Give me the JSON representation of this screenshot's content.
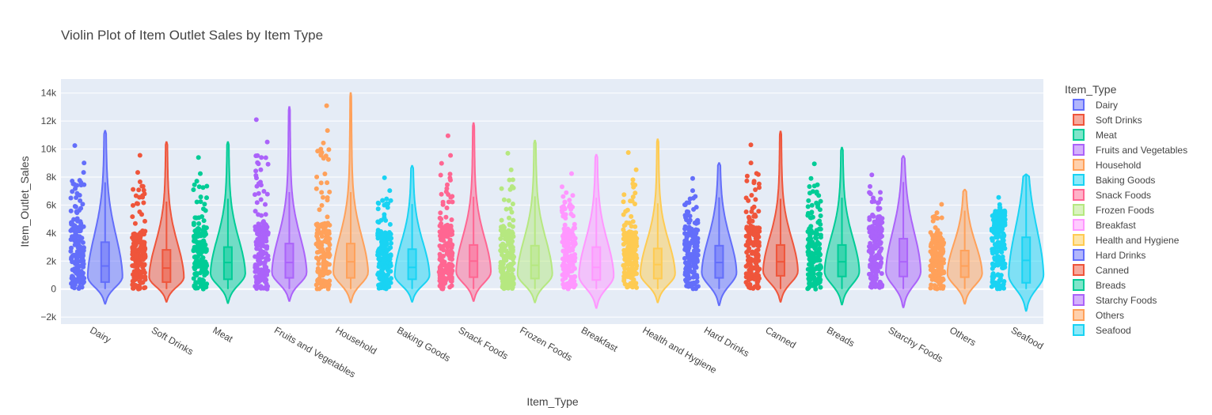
{
  "chart_data": {
    "type": "violin",
    "title": "Violin Plot of Item Outlet Sales by Item Type",
    "xlabel": "Item_Type",
    "ylabel": "Item_Outlet_Sales",
    "ylim": [
      -2500,
      15000
    ],
    "yticks": [
      -2000,
      0,
      2000,
      4000,
      6000,
      8000,
      10000,
      12000,
      14000
    ],
    "ytick_labels": [
      "−2k",
      "0",
      "2k",
      "4k",
      "6k",
      "8k",
      "10k",
      "12k",
      "14k"
    ],
    "legend_title": "Item_Type",
    "legend_position": "right",
    "grid": true,
    "categories": [
      "Dairy",
      "Soft Drinks",
      "Meat",
      "Fruits and Vegetables",
      "Household",
      "Baking Goods",
      "Snack Foods",
      "Frozen Foods",
      "Breakfast",
      "Health and Hygiene",
      "Hard Drinks",
      "Canned",
      "Breads",
      "Starchy Foods",
      "Others",
      "Seafood"
    ],
    "series": [
      {
        "name": "Dairy",
        "color": "#636efa",
        "min": 0,
        "q1": 500,
        "median": 1650,
        "q3": 3350,
        "max": 11300,
        "kde_min": -1050,
        "points_max": 10250
      },
      {
        "name": "Soft Drinks",
        "color": "#ef553b",
        "min": 0,
        "q1": 500,
        "median": 1500,
        "q3": 2800,
        "max": 10500,
        "kde_min": -900,
        "points_max": 9550
      },
      {
        "name": "Meat",
        "color": "#00cc96",
        "min": 0,
        "q1": 700,
        "median": 1900,
        "q3": 3000,
        "max": 10500,
        "kde_min": -1000,
        "points_max": 9400
      },
      {
        "name": "Fruits and Vegetables",
        "color": "#ab63fa",
        "min": 0,
        "q1": 800,
        "median": 1900,
        "q3": 3250,
        "max": 13000,
        "kde_min": -850,
        "points_max": 12100
      },
      {
        "name": "Household",
        "color": "#ffa15a",
        "min": 0,
        "q1": 800,
        "median": 1950,
        "q3": 3250,
        "max": 14000,
        "kde_min": -950,
        "points_max": 13100
      },
      {
        "name": "Baking Goods",
        "color": "#19d3f3",
        "min": 0,
        "q1": 700,
        "median": 1550,
        "q3": 2850,
        "max": 8800,
        "kde_min": -900,
        "points_max": 7950
      },
      {
        "name": "Snack Foods",
        "color": "#ff6692",
        "min": 0,
        "q1": 850,
        "median": 2000,
        "q3": 3150,
        "max": 11850,
        "kde_min": -850,
        "points_max": 10950
      },
      {
        "name": "Frozen Foods",
        "color": "#b6e880",
        "min": 0,
        "q1": 750,
        "median": 1700,
        "q3": 3100,
        "max": 10600,
        "kde_min": -950,
        "points_max": 9700
      },
      {
        "name": "Breakfast",
        "color": "#ff97ff",
        "min": 0,
        "q1": 650,
        "median": 1550,
        "q3": 3000,
        "max": 9600,
        "kde_min": -1350,
        "points_max": 8250
      },
      {
        "name": "Health and Hygiene",
        "color": "#fecb52",
        "min": 0,
        "q1": 750,
        "median": 1750,
        "q3": 2900,
        "max": 10700,
        "kde_min": -950,
        "points_max": 9750
      },
      {
        "name": "Hard Drinks",
        "color": "#636efa",
        "min": 0,
        "q1": 800,
        "median": 1900,
        "q3": 3100,
        "max": 9000,
        "kde_min": -1150,
        "points_max": 7900
      },
      {
        "name": "Canned",
        "color": "#ef553b",
        "min": 0,
        "q1": 950,
        "median": 1950,
        "q3": 3150,
        "max": 11250,
        "kde_min": -900,
        "points_max": 10300
      },
      {
        "name": "Breads",
        "color": "#00cc96",
        "min": 0,
        "q1": 900,
        "median": 1950,
        "q3": 3150,
        "max": 10100,
        "kde_min": -1100,
        "points_max": 8950
      },
      {
        "name": "Starchy Foods",
        "color": "#ab63fa",
        "min": 0,
        "q1": 900,
        "median": 1950,
        "q3": 3600,
        "max": 9500,
        "kde_min": -1300,
        "points_max": 8150
      },
      {
        "name": "Others",
        "color": "#ffa15a",
        "min": 0,
        "q1": 850,
        "median": 1650,
        "q3": 2750,
        "max": 7100,
        "kde_min": -1050,
        "points_max": 6050
      },
      {
        "name": "Seafood",
        "color": "#19d3f3",
        "min": 0,
        "q1": 450,
        "median": 2050,
        "q3": 3700,
        "max": 8200,
        "kde_min": -1550,
        "points_max": 6550
      }
    ]
  }
}
